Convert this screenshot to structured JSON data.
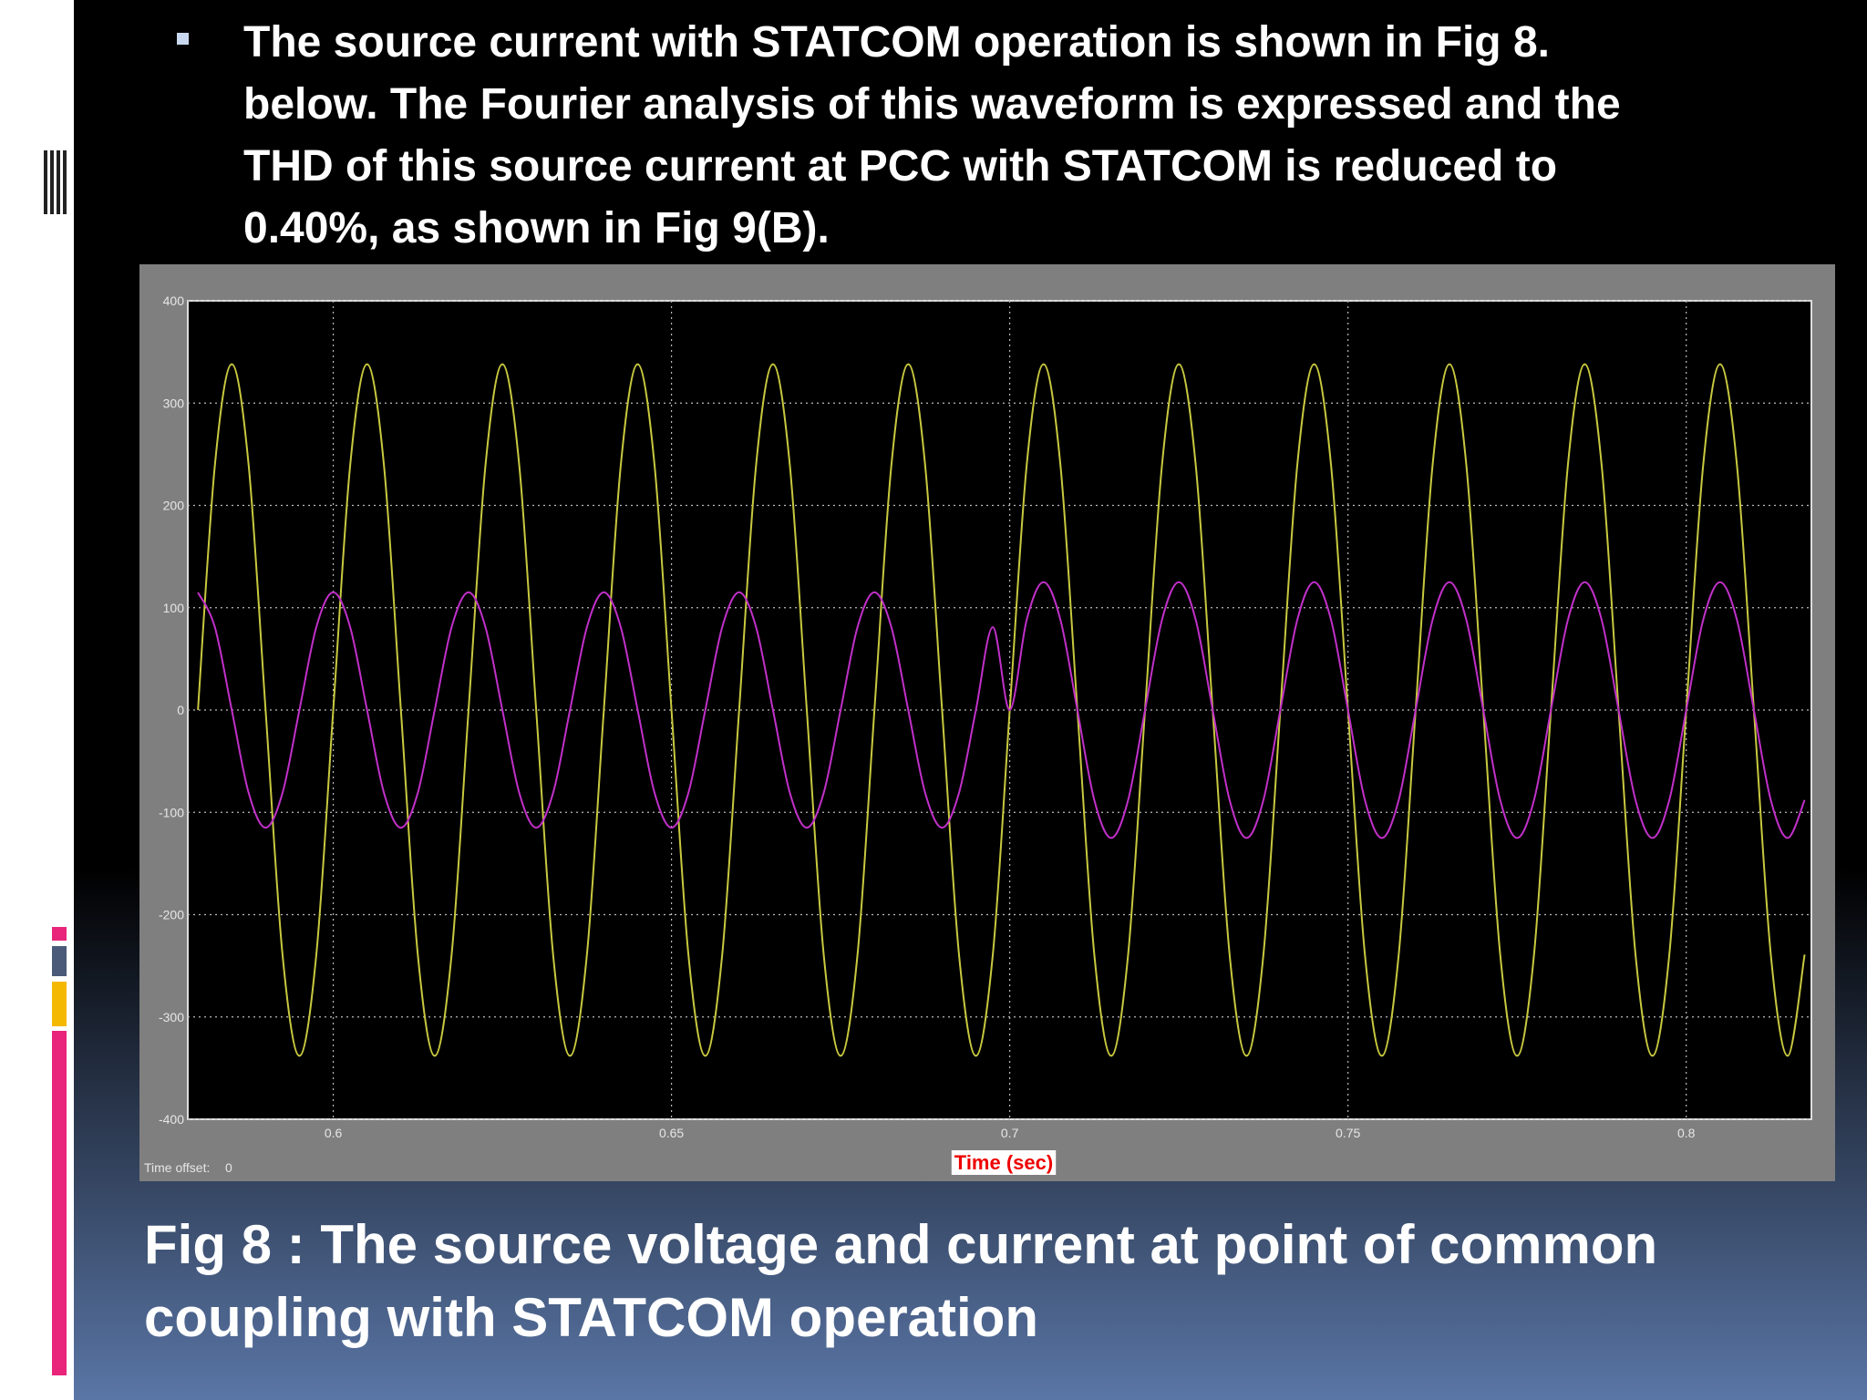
{
  "bullet_lines": [
    "The source current with STATCOM operation is shown in Fig 8.",
    "below. The Fourier analysis of this waveform is expressed and the",
    "THD of this source current at PCC with STATCOM is reduced to",
    "0.40%, as shown in Fig 9(B)."
  ],
  "caption_lines": [
    "Fig 8 : The source voltage and current at point of common",
    "coupling with STATCOM operation"
  ],
  "chart_data": {
    "type": "line",
    "x_label": "Time (sec)",
    "time_offset_label": "Time offset:",
    "time_offset": 0,
    "xlim": [
      0.5785,
      0.8185
    ],
    "ylim": [
      -400,
      400
    ],
    "xticks": [
      0.6,
      0.65,
      0.7,
      0.75,
      0.8
    ],
    "yticks": [
      -400,
      -300,
      -200,
      -100,
      0,
      100,
      200,
      300,
      400
    ],
    "grid": true,
    "x": [
      0.58,
      0.5825,
      0.585,
      0.5875,
      0.59,
      0.5925,
      0.595,
      0.5975,
      0.6,
      0.6025,
      0.605,
      0.6075,
      0.61,
      0.6125,
      0.615,
      0.6175,
      0.62,
      0.6225,
      0.625,
      0.6275,
      0.63,
      0.6325,
      0.635,
      0.6375,
      0.64,
      0.6425,
      0.645,
      0.6475,
      0.65,
      0.6525,
      0.655,
      0.6575,
      0.66,
      0.6625,
      0.665,
      0.6675,
      0.67,
      0.6725,
      0.675,
      0.6775,
      0.68,
      0.6825,
      0.685,
      0.6875,
      0.69,
      0.6925,
      0.695,
      0.6975,
      0.7,
      0.7025,
      0.705,
      0.7075,
      0.71,
      0.7125,
      0.715,
      0.7175,
      0.72,
      0.7225,
      0.725,
      0.7275,
      0.73,
      0.7325,
      0.735,
      0.7375,
      0.74,
      0.7425,
      0.745,
      0.7475,
      0.75,
      0.7525,
      0.755,
      0.7575,
      0.76,
      0.7625,
      0.765,
      0.7675,
      0.77,
      0.7725,
      0.775,
      0.7775,
      0.78,
      0.7825,
      0.785,
      0.7875,
      0.79,
      0.7925,
      0.795,
      0.7975,
      0.8,
      0.8025,
      0.805,
      0.8075,
      0.81,
      0.8125,
      0.815,
      0.8175
    ],
    "series": [
      {
        "color": "#c8c840",
        "values": [
          0,
          239,
          338,
          239,
          0,
          -239,
          -338,
          -239,
          0,
          239,
          338,
          239,
          0,
          -239,
          -338,
          -239,
          0,
          239,
          338,
          239,
          0,
          -239,
          -338,
          -239,
          0,
          239,
          338,
          239,
          0,
          -239,
          -338,
          -239,
          0,
          239,
          338,
          239,
          0,
          -239,
          -338,
          -239,
          0,
          239,
          338,
          239,
          0,
          -239,
          -338,
          -239,
          0,
          239,
          338,
          239,
          0,
          -239,
          -338,
          -239,
          0,
          239,
          338,
          239,
          0,
          -239,
          -338,
          -239,
          0,
          239,
          338,
          239,
          0,
          -239,
          -338,
          -239,
          0,
          239,
          338,
          239,
          0,
          -239,
          -338,
          -239,
          0,
          239,
          338,
          239,
          0,
          -239,
          -338,
          -239,
          0,
          239,
          338,
          239,
          0,
          -239,
          -338,
          -239
        ]
      },
      {
        "color": "#c030c8",
        "values": [
          115,
          81,
          0,
          -81,
          -115,
          -81,
          0,
          81,
          115,
          81,
          0,
          -81,
          -115,
          -81,
          0,
          81,
          115,
          81,
          0,
          -81,
          -115,
          -81,
          0,
          81,
          115,
          81,
          0,
          -81,
          -115,
          -81,
          0,
          81,
          115,
          81,
          0,
          -81,
          -115,
          -81,
          0,
          81,
          115,
          81,
          0,
          -81,
          -115,
          -81,
          0,
          81,
          0,
          88,
          125,
          88,
          0,
          -88,
          -125,
          -88,
          0,
          88,
          125,
          88,
          0,
          -88,
          -125,
          -88,
          0,
          88,
          125,
          88,
          0,
          -88,
          -125,
          -88,
          0,
          88,
          125,
          88,
          0,
          -88,
          -125,
          -88,
          0,
          88,
          125,
          88,
          0,
          -88,
          -125,
          -88,
          0,
          88,
          125,
          88,
          0,
          -88,
          -125,
          -88
        ]
      }
    ]
  }
}
